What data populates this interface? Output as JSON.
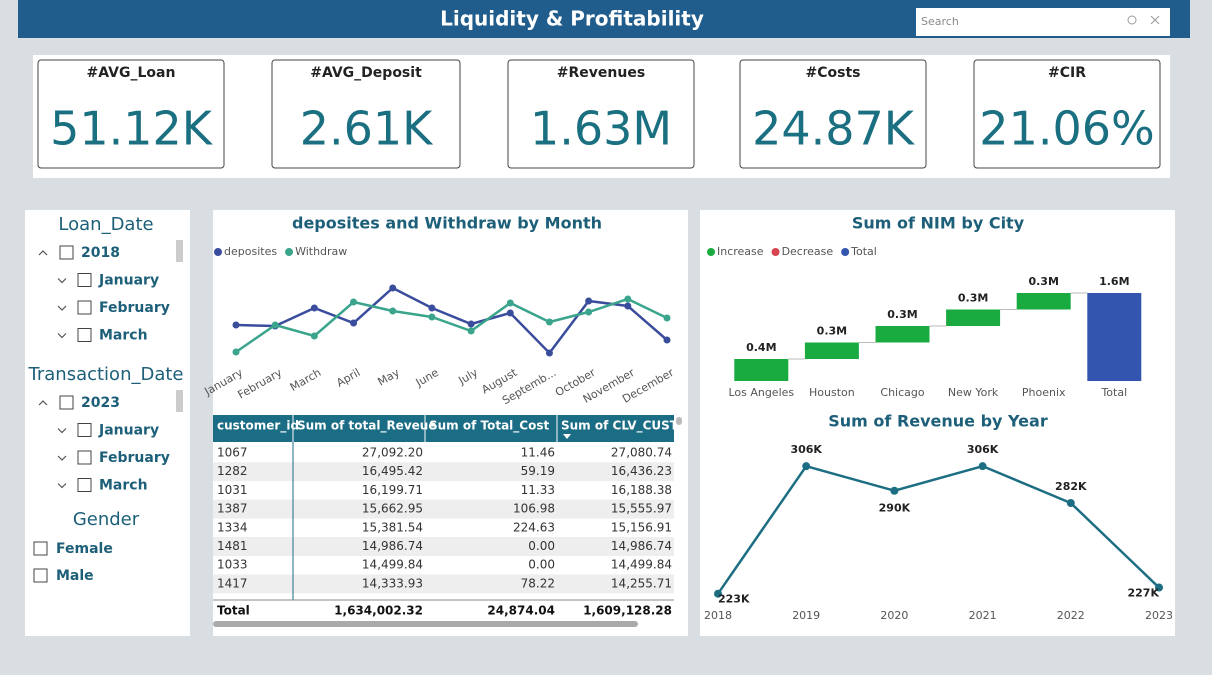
{
  "header": {
    "title": "Liquidity & Profitability",
    "search_placeholder": "Search"
  },
  "kpis": [
    {
      "label": "#AVG_Loan",
      "value": "51.12K"
    },
    {
      "label": "#AVG_Deposit",
      "value": "2.61K"
    },
    {
      "label": "#Revenues",
      "value": "1.63M"
    },
    {
      "label": "#Costs",
      "value": "24.87K"
    },
    {
      "label": "#CIR",
      "value": "21.06%"
    }
  ],
  "slicers": [
    {
      "title": "Loan_Date",
      "year": "2018",
      "months": [
        "January",
        "February",
        "March"
      ]
    },
    {
      "title": "Transaction_Date",
      "year": "2023",
      "months": [
        "January",
        "February",
        "March"
      ]
    },
    {
      "title": "Gender",
      "items": [
        "Female",
        "Male"
      ]
    }
  ],
  "chart_data": [
    {
      "type": "line",
      "title": "deposites and Withdraw by Month",
      "categories": [
        "January",
        "February",
        "March",
        "April",
        "May",
        "June",
        "July",
        "August",
        "Septemb...",
        "October",
        "November",
        "December"
      ],
      "series": [
        {
          "name": "deposites",
          "color": "#3a4d9c",
          "values": [
            35,
            34,
            52,
            37,
            72,
            52,
            36,
            47,
            7,
            59,
            54,
            20
          ]
        },
        {
          "name": "Withdraw",
          "color": "#3aa58c",
          "values": [
            8,
            35,
            24,
            58,
            49,
            43,
            29,
            57,
            38,
            48,
            61,
            42
          ]
        }
      ],
      "ylim": [
        0,
        80
      ],
      "legend": "top-left"
    },
    {
      "type": "waterfall",
      "title": "Sum of NIM by City",
      "legend_items": [
        {
          "name": "Increase",
          "color": "#1aab40"
        },
        {
          "name": "Decrease",
          "color": "#d64550"
        },
        {
          "name": "Total",
          "color": "#3355b0"
        }
      ],
      "categories": [
        "Los Angeles",
        "Houston",
        "Chicago",
        "New York",
        "Phoenix",
        "Total"
      ],
      "values": [
        0.4,
        0.3,
        0.3,
        0.3,
        0.3,
        1.6
      ],
      "value_labels": [
        "0.4M",
        "0.3M",
        "0.3M",
        "0.3M",
        "0.3M",
        "1.6M"
      ],
      "ylim": [
        0,
        1.6
      ]
    },
    {
      "type": "line",
      "title": "Sum of Revenue by Year",
      "x": [
        2018,
        2019,
        2020,
        2021,
        2022,
        2023
      ],
      "series": [
        {
          "color": "#1d6e83",
          "values": [
            223,
            306,
            290,
            306,
            282,
            227
          ],
          "value_labels": [
            "223K",
            "306K",
            "290K",
            "306K",
            "282K",
            "227K"
          ]
        }
      ],
      "xlim": [
        2018,
        2023
      ],
      "xticks": [
        2018,
        2019,
        2020,
        2021,
        2022,
        2023
      ],
      "ylim": [
        215,
        310
      ]
    }
  ],
  "table": {
    "columns": [
      "customer_id",
      "Sum of total_Reveue",
      "Sum of Total_Cost",
      "Sum of CLV_CUST"
    ],
    "rows": [
      [
        "1067",
        "27,092.20",
        "11.46",
        "27,080.74"
      ],
      [
        "1282",
        "16,495.42",
        "59.19",
        "16,436.23"
      ],
      [
        "1031",
        "16,199.71",
        "11.33",
        "16,188.38"
      ],
      [
        "1387",
        "15,662.95",
        "106.98",
        "15,555.97"
      ],
      [
        "1334",
        "15,381.54",
        "224.63",
        "15,156.91"
      ],
      [
        "1481",
        "14,986.74",
        "0.00",
        "14,986.74"
      ],
      [
        "1033",
        "14,499.84",
        "0.00",
        "14,499.84"
      ],
      [
        "1417",
        "14,333.93",
        "78.22",
        "14,255.71"
      ]
    ],
    "total": [
      "Total",
      "1,634,002.32",
      "24,874.04",
      "1,609,128.28"
    ]
  }
}
